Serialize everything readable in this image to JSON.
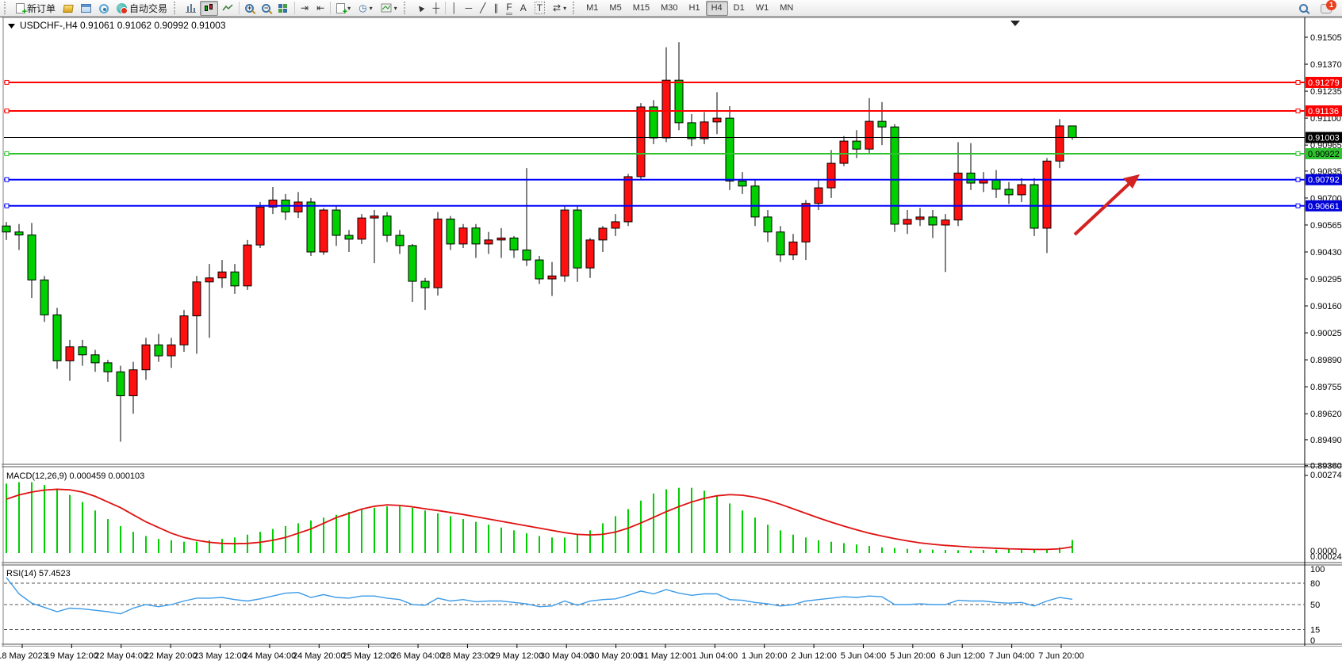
{
  "toolbar": {
    "new_order_label": "新订单",
    "autotrade_label": "自动交易",
    "timeframes": [
      "M1",
      "M5",
      "M15",
      "M30",
      "H1",
      "H4",
      "D1",
      "W1",
      "MN"
    ],
    "active_timeframe": "H4",
    "notification_count": "1",
    "drawing_glyphs": {
      "vline": "│",
      "hline": "─",
      "trend": "╱",
      "channel": "∥",
      "fibo": "F",
      "text": "A",
      "label": "T"
    }
  },
  "chart_window": {
    "symbol_title": "USDCHF-,H4",
    "ohlc_text": "0.91061 0.91062 0.90992 0.91003"
  },
  "chart_data": {
    "type": "candlestick",
    "symbol": "USDCHF",
    "timeframe": "H4",
    "colors": {
      "up": "#ff1010",
      "down": "#00cf00",
      "wick": "#000000",
      "macd_hist": "#00cf00",
      "macd_signal": "#e01010",
      "rsi_line": "#3c9be8",
      "arrow": "#d42222"
    },
    "price_axis_ticks": [
      "0.91505",
      "0.91370",
      "0.91235",
      "0.91100",
      "0.90965",
      "0.90835",
      "0.90700",
      "0.90565",
      "0.90430",
      "0.90295",
      "0.90160",
      "0.90025",
      "0.89890",
      "0.89755",
      "0.89620",
      "0.89490",
      "0.89360"
    ],
    "levels": [
      {
        "price": 0.91279,
        "label": "0.91279",
        "color": "#ff0000",
        "badge_bg": "#ff0000",
        "badge_fg": "#ffffff",
        "width": 2,
        "handles": true
      },
      {
        "price": 0.91136,
        "label": "0.91136",
        "color": "#ff0000",
        "badge_bg": "#ff0000",
        "badge_fg": "#ffffff",
        "width": 2,
        "handles": true
      },
      {
        "price": 0.91003,
        "label": "0.91003",
        "color": "#000000",
        "badge_bg": "#000000",
        "badge_fg": "#ffffff",
        "width": 1,
        "handles": false
      },
      {
        "price": 0.90922,
        "label": "0.90922",
        "color": "#2fc42f",
        "badge_bg": "#2fc42f",
        "badge_fg": "#000000",
        "width": 2,
        "handles": true
      },
      {
        "price": 0.90792,
        "label": "0.90792",
        "color": "#0000ff",
        "badge_bg": "#0000d8",
        "badge_fg": "#ffffff",
        "width": 2,
        "handles": true
      },
      {
        "price": 0.90661,
        "label": "0.90661",
        "color": "#0000ff",
        "badge_bg": "#0000d8",
        "badge_fg": "#ffffff",
        "width": 2,
        "handles": true
      }
    ],
    "time_axis": [
      "18 May 2023",
      "19 May 12:00",
      "22 May 04:00",
      "22 May 20:00",
      "23 May 12:00",
      "24 May 04:00",
      "24 May 20:00",
      "25 May 12:00",
      "26 May 04:00",
      "28 May 23:00",
      "29 May 12:00",
      "30 May 04:00",
      "30 May 20:00",
      "31 May 12:00",
      "1 Jun 04:00",
      "1 Jun 20:00",
      "2 Jun 12:00",
      "5 Jun 04:00",
      "5 Jun 20:00",
      "6 Jun 12:00",
      "7 Jun 04:00",
      "7 Jun 20:00"
    ],
    "candles": [
      [
        0.9056,
        0.9058,
        0.9049,
        0.9053
      ],
      [
        0.9053,
        0.9057,
        0.9044,
        0.90515
      ],
      [
        0.90515,
        0.90575,
        0.902,
        0.9029
      ],
      [
        0.9029,
        0.9031,
        0.9008,
        0.90115
      ],
      [
        0.90115,
        0.9015,
        0.89845,
        0.89885
      ],
      [
        0.89885,
        0.8999,
        0.89785,
        0.89955
      ],
      [
        0.89955,
        0.8999,
        0.8986,
        0.89915
      ],
      [
        0.89915,
        0.8994,
        0.8983,
        0.89875
      ],
      [
        0.89875,
        0.8989,
        0.8978,
        0.8983
      ],
      [
        0.8983,
        0.8986,
        0.8948,
        0.8971
      ],
      [
        0.8971,
        0.8988,
        0.8962,
        0.8984
      ],
      [
        0.8984,
        0.9,
        0.8979,
        0.89965
      ],
      [
        0.89965,
        0.9002,
        0.8988,
        0.8991
      ],
      [
        0.8991,
        0.9,
        0.8985,
        0.89965
      ],
      [
        0.89965,
        0.9014,
        0.8993,
        0.9011
      ],
      [
        0.9011,
        0.9031,
        0.8992,
        0.9028
      ],
      [
        0.9028,
        0.9037,
        0.9,
        0.903
      ],
      [
        0.903,
        0.9039,
        0.9025,
        0.9033
      ],
      [
        0.9033,
        0.9037,
        0.9022,
        0.9026
      ],
      [
        0.9026,
        0.9049,
        0.9024,
        0.90465
      ],
      [
        0.90465,
        0.9068,
        0.9045,
        0.90655
      ],
      [
        0.90655,
        0.90755,
        0.9062,
        0.9069
      ],
      [
        0.9069,
        0.9072,
        0.9059,
        0.9063
      ],
      [
        0.9063,
        0.9073,
        0.906,
        0.9068
      ],
      [
        0.9068,
        0.907,
        0.9041,
        0.9043
      ],
      [
        0.9043,
        0.9065,
        0.90415,
        0.9064
      ],
      [
        0.9064,
        0.9066,
        0.9046,
        0.90513
      ],
      [
        0.90513,
        0.9054,
        0.9043,
        0.90494
      ],
      [
        0.90494,
        0.9062,
        0.9047,
        0.906
      ],
      [
        0.906,
        0.9064,
        0.90374,
        0.9061
      ],
      [
        0.9061,
        0.9063,
        0.9048,
        0.90513
      ],
      [
        0.90513,
        0.9054,
        0.9042,
        0.90462
      ],
      [
        0.90462,
        0.9047,
        0.9018,
        0.90283
      ],
      [
        0.90283,
        0.903,
        0.9014,
        0.90251
      ],
      [
        0.90251,
        0.9063,
        0.90212,
        0.90595
      ],
      [
        0.90595,
        0.9061,
        0.9044,
        0.9047
      ],
      [
        0.9047,
        0.9057,
        0.9045,
        0.9055
      ],
      [
        0.9055,
        0.9057,
        0.904,
        0.9047
      ],
      [
        0.9047,
        0.9053,
        0.9042,
        0.9049
      ],
      [
        0.9049,
        0.9055,
        0.904,
        0.905
      ],
      [
        0.905,
        0.9051,
        0.904,
        0.9044
      ],
      [
        0.9044,
        0.9085,
        0.9036,
        0.9039
      ],
      [
        0.9039,
        0.9041,
        0.9027,
        0.90295
      ],
      [
        0.90295,
        0.9038,
        0.9021,
        0.9031
      ],
      [
        0.9031,
        0.9066,
        0.9028,
        0.9064
      ],
      [
        0.9064,
        0.9066,
        0.9028,
        0.9035
      ],
      [
        0.9035,
        0.905,
        0.903,
        0.9049
      ],
      [
        0.9049,
        0.9056,
        0.9043,
        0.90549
      ],
      [
        0.90549,
        0.9062,
        0.9051,
        0.90581
      ],
      [
        0.90581,
        0.9082,
        0.9056,
        0.90807
      ],
      [
        0.90807,
        0.91175,
        0.9079,
        0.91156
      ],
      [
        0.91156,
        0.9119,
        0.9097,
        0.91001
      ],
      [
        0.91001,
        0.91455,
        0.9098,
        0.9129
      ],
      [
        0.9129,
        0.9148,
        0.9104,
        0.91077
      ],
      [
        0.91077,
        0.9112,
        0.9096,
        0.90997
      ],
      [
        0.90997,
        0.9113,
        0.9097,
        0.91081
      ],
      [
        0.91081,
        0.9123,
        0.9102,
        0.911
      ],
      [
        0.911,
        0.9116,
        0.9074,
        0.90785
      ],
      [
        0.90785,
        0.9083,
        0.9072,
        0.9076
      ],
      [
        0.9076,
        0.9079,
        0.9056,
        0.90605
      ],
      [
        0.90605,
        0.9064,
        0.9048,
        0.9053
      ],
      [
        0.9053,
        0.9056,
        0.9038,
        0.90415
      ],
      [
        0.90415,
        0.9052,
        0.9039,
        0.9048
      ],
      [
        0.9048,
        0.9069,
        0.9039,
        0.90673
      ],
      [
        0.90673,
        0.9079,
        0.9064,
        0.90751
      ],
      [
        0.90751,
        0.9094,
        0.907,
        0.90874
      ],
      [
        0.90874,
        0.9101,
        0.9086,
        0.90985
      ],
      [
        0.90985,
        0.9104,
        0.909,
        0.90945
      ],
      [
        0.90945,
        0.912,
        0.9092,
        0.91084
      ],
      [
        0.91084,
        0.9118,
        0.90965,
        0.91056
      ],
      [
        0.91056,
        0.9107,
        0.9053,
        0.90569
      ],
      [
        0.90569,
        0.9064,
        0.9052,
        0.90593
      ],
      [
        0.90593,
        0.9065,
        0.9056,
        0.90605
      ],
      [
        0.90605,
        0.9064,
        0.905,
        0.90565
      ],
      [
        0.90565,
        0.9062,
        0.9033,
        0.9059
      ],
      [
        0.9059,
        0.9098,
        0.9056,
        0.90825
      ],
      [
        0.90825,
        0.90975,
        0.9074,
        0.90775
      ],
      [
        0.90775,
        0.9083,
        0.9073,
        0.9079
      ],
      [
        0.9079,
        0.9084,
        0.907,
        0.90744
      ],
      [
        0.90744,
        0.9078,
        0.9067,
        0.90716
      ],
      [
        0.90716,
        0.908,
        0.9068,
        0.90767
      ],
      [
        0.90767,
        0.908,
        0.9051,
        0.90549
      ],
      [
        0.90549,
        0.909,
        0.90425,
        0.90885
      ],
      [
        0.90885,
        0.91095,
        0.9085,
        0.91061
      ],
      [
        0.91061,
        0.91062,
        0.90992,
        0.91003
      ]
    ],
    "indicators": {
      "macd": {
        "label": "MACD(12,26,9)",
        "values_text": "0.000459 0.000103",
        "axis_max": "0.002741",
        "axis_zero": "0.0000",
        "axis_min": "0.000247",
        "histogram": [
          24.5,
          25,
          25,
          24,
          22.5,
          20.5,
          18,
          15,
          12,
          9.5,
          7.5,
          6,
          5,
          4.5,
          4,
          4,
          4.5,
          5,
          5.5,
          6.5,
          7.5,
          8.5,
          9.5,
          10.5,
          11.5,
          12.5,
          13.5,
          14.5,
          15.5,
          16,
          16.5,
          16.5,
          16,
          15,
          14,
          13,
          12,
          11,
          10,
          9,
          8,
          7,
          6,
          5.5,
          5.5,
          6.5,
          8,
          10.5,
          13,
          15.5,
          18.5,
          21,
          22.5,
          23,
          23,
          22,
          20,
          17.5,
          15,
          12.5,
          10,
          8,
          6.5,
          5.5,
          4.5,
          4,
          3.5,
          3,
          2.5,
          2,
          1.8,
          1.5,
          1.3,
          1.2,
          1.1,
          1,
          1,
          1.1,
          1.2,
          1.3,
          1.4,
          1.3,
          1.5,
          2,
          4.6
        ],
        "signal": [
          19,
          20.5,
          21.5,
          22.2,
          22.5,
          22.3,
          21.5,
          20,
          18,
          16,
          13.5,
          11,
          9,
          7,
          5.5,
          4.5,
          3.8,
          3.4,
          3.3,
          3.4,
          3.8,
          4.5,
          5.5,
          7,
          8.5,
          10.5,
          12.5,
          14,
          15.5,
          16.5,
          17,
          16.8,
          16.3,
          15.6,
          15,
          14.3,
          13.6,
          12.8,
          12,
          11.2,
          10.4,
          9.6,
          8.8,
          8,
          7.2,
          6.6,
          6.4,
          6.6,
          7.4,
          8.8,
          10.6,
          12.6,
          14.6,
          16.4,
          18,
          19.3,
          20.2,
          20.6,
          20.4,
          19.7,
          18.6,
          17.2,
          15.6,
          14,
          12.4,
          10.9,
          9.5,
          8.2,
          7,
          6,
          5.1,
          4.3,
          3.6,
          3.1,
          2.7,
          2.4,
          2.1,
          1.9,
          1.7,
          1.5,
          1.4,
          1.3,
          1.3,
          1.5,
          2.2
        ]
      },
      "rsi": {
        "label": "RSI(14)",
        "value": "57.4523",
        "axis": [
          "100",
          "80",
          "50",
          "15",
          "0"
        ],
        "dashed_levels": [
          80,
          50,
          15
        ],
        "values": [
          88,
          65,
          52,
          46,
          40,
          45,
          44,
          42,
          40,
          37,
          45,
          50,
          47,
          50,
          55,
          59,
          59,
          60,
          57,
          55,
          58,
          62,
          66,
          67,
          60,
          64,
          60,
          59,
          62,
          62,
          59,
          57,
          50,
          49,
          59,
          55,
          57,
          54,
          55,
          55,
          53,
          51,
          47,
          48,
          55,
          49,
          55,
          57,
          58,
          63,
          69,
          65,
          71,
          66,
          63,
          65,
          65,
          57,
          56,
          53,
          51,
          48,
          50,
          55,
          57,
          59,
          61,
          60,
          62,
          61,
          50,
          50,
          51,
          50,
          50,
          56,
          55,
          55,
          53,
          52,
          53,
          48,
          55,
          60,
          57.4523
        ]
      }
    },
    "annotation": {
      "type": "trend-arrow",
      "color": "#d42222",
      "from_price": 0.9056,
      "to_price": 0.9086
    }
  }
}
